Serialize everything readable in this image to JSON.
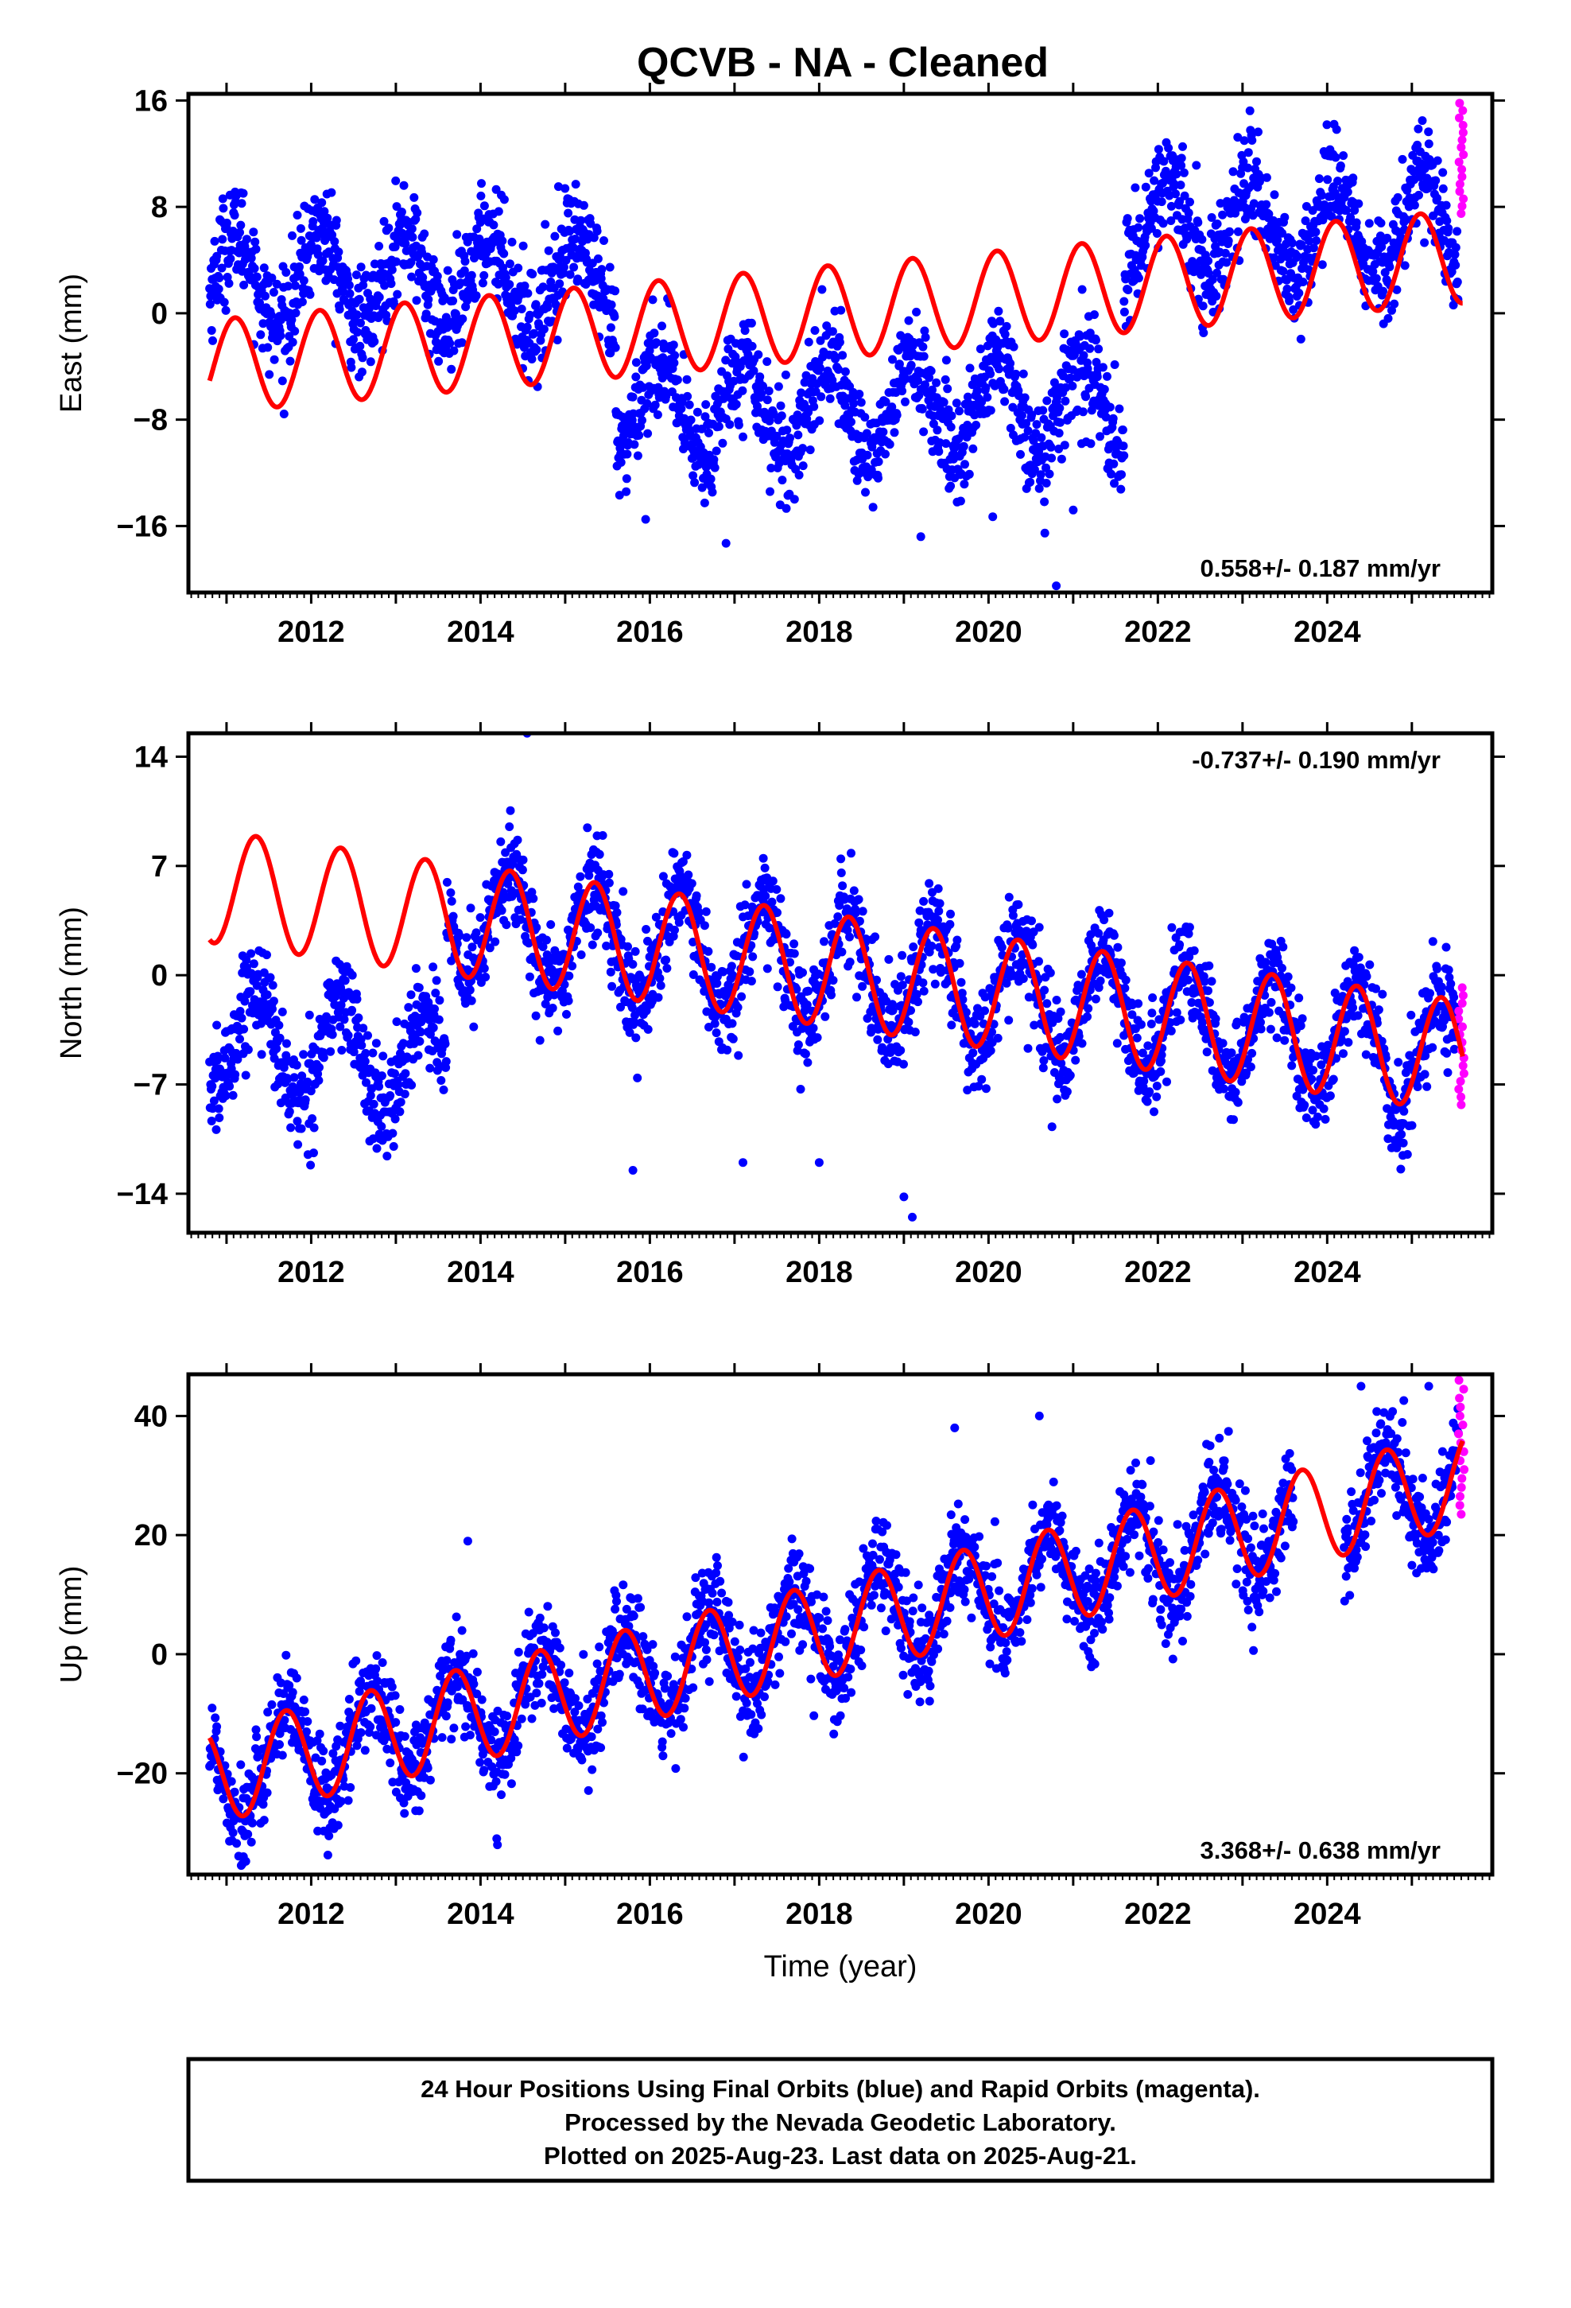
{
  "title": "QCVB  - NA - Cleaned",
  "footer": {
    "line1": "24 Hour Positions Using Final Orbits (blue) and Rapid Orbits (magenta).",
    "line2": "Processed by the Nevada Geodetic Laboratory.",
    "line3": "Plotted on 2025-Aug-23. Last data on 2025-Aug-21."
  },
  "colors": {
    "final": "#0000ff",
    "rapid": "#ff00ff",
    "model": "#ff0000",
    "frame": "#000000"
  },
  "chart_data": [
    {
      "type": "scatter",
      "ylabel": "East (mm)",
      "xlabel": "",
      "xlim": [
        2010.55,
        2025.95
      ],
      "ylim": [
        -21,
        16.5
      ],
      "x_ticks": [
        2012,
        2014,
        2016,
        2018,
        2020,
        2022,
        2024
      ],
      "x_tick_labels": [
        "2012",
        "2014",
        "2016",
        "2018",
        "2020",
        "2022",
        "2024"
      ],
      "y_ticks": [
        -16,
        -8,
        0,
        8,
        16
      ],
      "y_tick_labels": [
        "−16",
        "−8",
        "0",
        "8",
        "16"
      ],
      "rate": "0.558+/- 0.187 mm/yr",
      "rate_position": "bottom-right",
      "final_orbits": {
        "start": 2010.8,
        "end": 2025.55,
        "segments": [
          {
            "start": 2010.8,
            "end": 2015.6,
            "offset": 2.5
          },
          {
            "start": 2015.6,
            "end": 2021.6,
            "offset": -7.0
          },
          {
            "start": 2021.6,
            "end": 2025.55,
            "offset": 6.5
          }
        ],
        "trend": 0.0,
        "amplitude": 3.5,
        "phase": 0.15,
        "scatter": 2.0,
        "outliers": [
          [
            2020.8,
            -20.5
          ],
          [
            2016.9,
            -17.3
          ],
          [
            2019.2,
            -16.8
          ],
          [
            2015.95,
            -15.5
          ],
          [
            2020.05,
            -15.3
          ],
          [
            2021.0,
            -14.8
          ]
        ]
      },
      "rapid_orbits": {
        "start": 2025.55,
        "end": 2025.62,
        "min": 7.5,
        "max": 15.8
      },
      "model": {
        "x0": 2010.8,
        "x1": 2025.6,
        "y0": -4.0,
        "trend": 0.558,
        "amplitude": 3.5,
        "phase": 0.15
      }
    },
    {
      "type": "scatter",
      "ylabel": "North (mm)",
      "xlabel": "",
      "xlim": [
        2010.55,
        2025.95
      ],
      "ylim": [
        -16.5,
        15.5
      ],
      "x_ticks": [
        2012,
        2014,
        2016,
        2018,
        2020,
        2022,
        2024
      ],
      "x_tick_labels": [
        "2012",
        "2014",
        "2016",
        "2018",
        "2020",
        "2022",
        "2024"
      ],
      "y_ticks": [
        -14,
        -7,
        0,
        7,
        14
      ],
      "y_tick_labels": [
        "−14",
        "−7",
        "0",
        "7",
        "14"
      ],
      "rate": "-0.737+/- 0.190 mm/yr",
      "rate_position": "top-right",
      "final_orbits": {
        "start": 2010.8,
        "end": 2025.55,
        "segments": [
          {
            "start": 2010.8,
            "end": 2013.6,
            "offset": -9.5
          },
          {
            "start": 2013.6,
            "end": 2025.55,
            "offset": 0.0
          }
        ],
        "trend": -0.737,
        "amplitude": 3.5,
        "phase": -0.1,
        "scatter": 1.6,
        "outliers": [
          [
            2019.0,
            -14.2
          ],
          [
            2019.1,
            -15.5
          ],
          [
            2017.1,
            -12.0
          ],
          [
            2018.0,
            -12.0
          ],
          [
            2015.8,
            -12.5
          ],
          [
            2024.9,
            -9.5
          ],
          [
            2014.55,
            15.5
          ]
        ]
      },
      "rapid_orbits": {
        "start": 2025.55,
        "end": 2025.62,
        "min": -8.3,
        "max": -0.8
      },
      "model": {
        "x0": 2010.8,
        "x1": 2025.6,
        "y0": 5.7,
        "trend": -0.737,
        "amplitude": 3.6,
        "phase": -0.1
      }
    },
    {
      "type": "scatter",
      "ylabel": "Up (mm)",
      "xlabel": "Time (year)",
      "xlim": [
        2010.55,
        2025.95
      ],
      "ylim": [
        -37,
        47
      ],
      "x_ticks": [
        2012,
        2014,
        2016,
        2018,
        2020,
        2022,
        2024
      ],
      "x_tick_labels": [
        "2012",
        "2014",
        "2016",
        "2018",
        "2020",
        "2022",
        "2024"
      ],
      "y_ticks": [
        -20,
        0,
        20,
        40
      ],
      "y_tick_labels": [
        "−20",
        "0",
        "20",
        "40"
      ],
      "rate": "3.368+/- 0.638 mm/yr",
      "rate_position": "bottom-right",
      "final_orbits": {
        "start": 2010.8,
        "end": 2025.55,
        "segments": [
          {
            "start": 2010.8,
            "end": 2023.6,
            "offset": 0.0
          },
          {
            "start": 2024.2,
            "end": 2025.55,
            "offset": 0.0
          }
        ],
        "trend": 3.368,
        "amplitude": 8.0,
        "phase": 0.55,
        "scatter": 4.2,
        "outliers": [
          [
            2013.85,
            19.0
          ],
          [
            2019.6,
            38.0
          ],
          [
            2020.6,
            40.0
          ],
          [
            2024.4,
            45.0
          ],
          [
            2025.2,
            45.0
          ],
          [
            2011.2,
            -34.0
          ],
          [
            2014.2,
            -32.0
          ]
        ]
      },
      "rapid_orbits": {
        "start": 2025.55,
        "end": 2025.62,
        "min": 23.5,
        "max": 46.0
      },
      "model": {
        "x0": 2010.8,
        "x1": 2025.6,
        "y0": -20.5,
        "trend": 3.368,
        "amplitude": 8.0,
        "phase": 0.55
      }
    }
  ]
}
